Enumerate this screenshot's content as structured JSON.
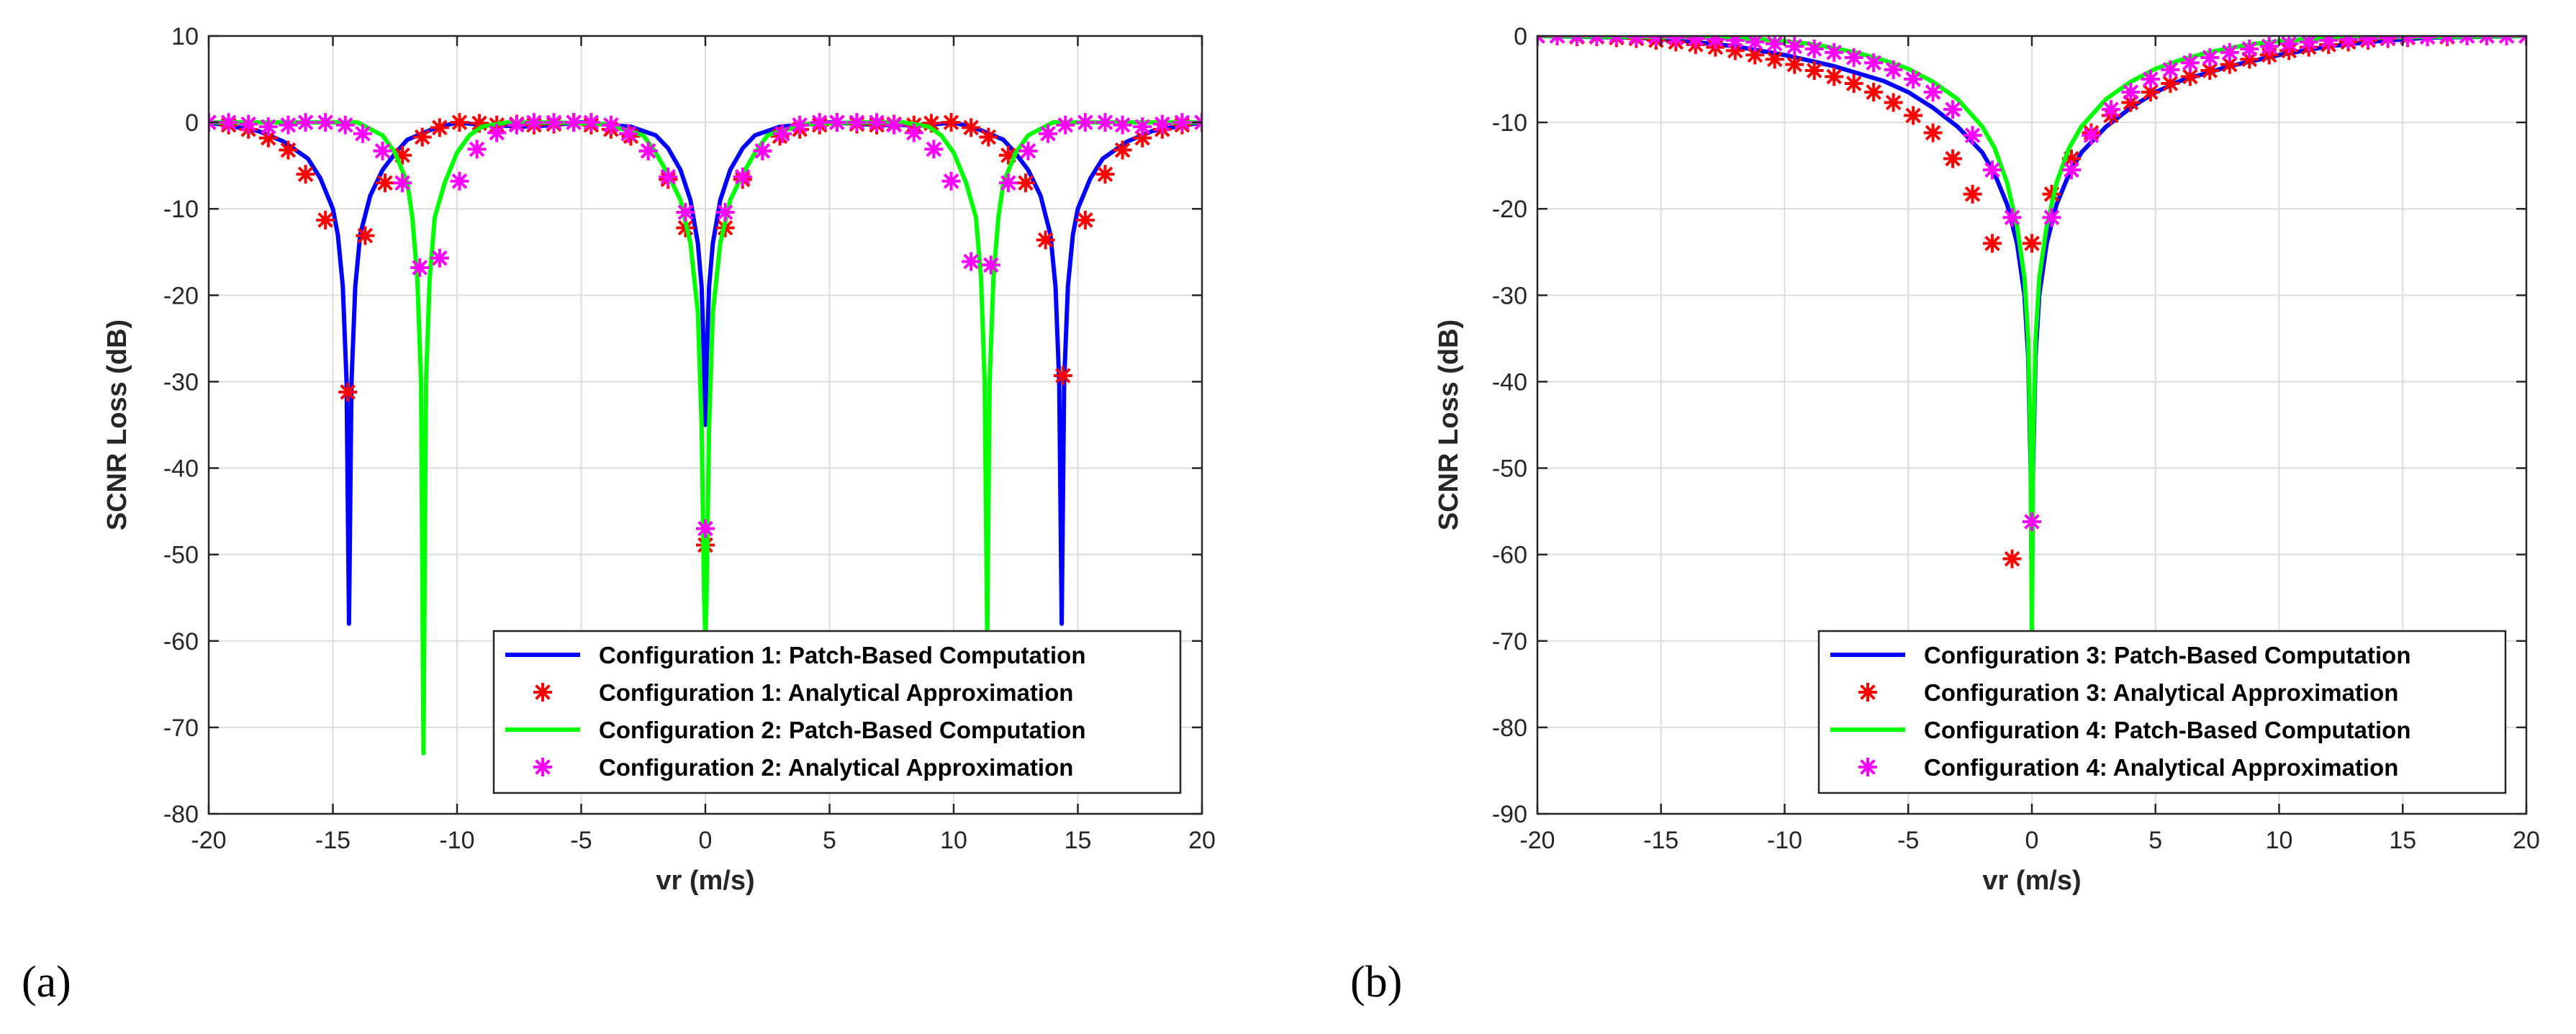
{
  "chart_data": [
    {
      "type": "line",
      "panel_label": "(a)",
      "xlabel": "vr (m/s)",
      "ylabel": "SCNR Loss (dB)",
      "xlim": [
        -20,
        20
      ],
      "ylim": [
        -80,
        10
      ],
      "xticks": [
        -20,
        -15,
        -10,
        -5,
        0,
        5,
        10,
        15,
        20
      ],
      "yticks": [
        10,
        0,
        -10,
        -20,
        -30,
        -40,
        -50,
        -60,
        -70,
        -80
      ],
      "grid": true,
      "legend_position": "bottom-right",
      "series": [
        {
          "name": "Configuration 1: Patch-Based Computation",
          "style": "line",
          "color": "#0000ff",
          "x": [
            -20,
            -18,
            -17,
            -16,
            -15.5,
            -15,
            -14.8,
            -14.6,
            -14.45,
            -14.35,
            -14.25,
            -14.1,
            -13.9,
            -13.5,
            -13,
            -12.5,
            -12,
            -11,
            -10,
            -9,
            -7,
            -5,
            -3,
            -2,
            -1.5,
            -1,
            -0.6,
            -0.3,
            -0.15,
            -0.05,
            0,
            0.05,
            0.15,
            0.3,
            0.6,
            1,
            1.5,
            2,
            3,
            5,
            7,
            9,
            10,
            11,
            12,
            12.5,
            13,
            13.5,
            13.9,
            14.1,
            14.25,
            14.35,
            14.45,
            14.6,
            14.8,
            15,
            15.5,
            16,
            17,
            18,
            20
          ],
          "y": [
            0,
            -1,
            -2.2,
            -4.2,
            -6.5,
            -10,
            -13,
            -19,
            -30,
            -58,
            -30,
            -19,
            -13,
            -8.5,
            -5.5,
            -3.6,
            -2,
            -0.8,
            0,
            -0.3,
            -0.5,
            0,
            -0.5,
            -1.5,
            -3,
            -5.5,
            -9,
            -14,
            -19,
            -28,
            -35,
            -28,
            -19,
            -14,
            -9,
            -5.5,
            -3,
            -1.5,
            -0.5,
            0,
            -0.3,
            -0.3,
            0,
            -0.8,
            -2,
            -3.6,
            -5.5,
            -8.5,
            -13,
            -19,
            -30,
            -58,
            -30,
            -19,
            -13,
            -10,
            -6.5,
            -4.2,
            -2.2,
            -1,
            0
          ]
        },
        {
          "name": "Configuration 1: Analytical Approximation",
          "style": "markers",
          "marker": "*",
          "color": "#ff0000",
          "x": [
            -20,
            -19.2,
            -18.4,
            -17.6,
            -16.8,
            -16.1,
            -15.3,
            -14.4,
            -13.7,
            -12.9,
            -12.2,
            -11.4,
            -10.7,
            -9.9,
            -9.1,
            -8.4,
            -7.6,
            -6.9,
            -6.1,
            -5.3,
            -4.6,
            -3.8,
            -3.0,
            -2.3,
            -1.5,
            -0.8,
            0,
            0.8,
            1.5,
            2.3,
            3.0,
            3.8,
            4.6,
            5.3,
            6.1,
            6.9,
            7.6,
            8.4,
            9.1,
            9.9,
            10.7,
            11.4,
            12.2,
            12.9,
            13.7,
            14.4,
            15.3,
            16.1,
            16.8,
            17.6,
            18.4,
            19.2,
            20
          ],
          "y": [
            0,
            -0.3,
            -0.8,
            -1.8,
            -3.2,
            -6,
            -11.3,
            -31.2,
            -13.1,
            -7,
            -3.8,
            -1.7,
            -0.6,
            0,
            -0.1,
            -0.3,
            -0.2,
            -0.3,
            -0.2,
            0,
            -0.3,
            -0.8,
            -1.6,
            -3.3,
            -6.6,
            -12.2,
            -48.9,
            -12.2,
            -6.6,
            -3.3,
            -1.6,
            -0.8,
            -0.3,
            0,
            -0.2,
            -0.3,
            -0.2,
            -0.3,
            -0.1,
            0,
            -0.6,
            -1.7,
            -3.8,
            -7,
            -13.6,
            -29.3,
            -11.3,
            -6,
            -3.2,
            -1.8,
            -0.8,
            -0.3,
            0
          ]
        },
        {
          "name": "Configuration 2: Patch-Based Computation",
          "style": "line",
          "color": "#00ff00",
          "x": [
            -20,
            -14,
            -13,
            -12.5,
            -12,
            -11.8,
            -11.6,
            -11.45,
            -11.35,
            -11.25,
            -11.1,
            -10.9,
            -10.5,
            -10,
            -9.5,
            -9,
            -8,
            -6,
            -4,
            -2.5,
            -2,
            -1.5,
            -1,
            -0.6,
            -0.3,
            -0.15,
            -0.05,
            0,
            0.05,
            0.15,
            0.3,
            0.6,
            1,
            1.5,
            2,
            2.5,
            4,
            6,
            8,
            9,
            9.5,
            10,
            10.5,
            10.9,
            11.1,
            11.25,
            11.35,
            11.45,
            11.6,
            11.8,
            12,
            12.5,
            13,
            14,
            20
          ],
          "y": [
            0,
            0,
            -1.5,
            -3.5,
            -7,
            -11,
            -18,
            -30,
            -73,
            -30,
            -18,
            -11,
            -7,
            -3.5,
            -1.5,
            -0.5,
            0,
            0,
            -0.2,
            -1.5,
            -3.5,
            -6,
            -9,
            -14,
            -22,
            -35,
            -55,
            -60,
            -55,
            -35,
            -22,
            -14,
            -9,
            -6,
            -3.5,
            -1.5,
            -0.2,
            0,
            0,
            -0.5,
            -1.5,
            -3.5,
            -7,
            -11,
            -18,
            -30,
            -60,
            -30,
            -18,
            -11,
            -7,
            -3.5,
            -1.5,
            0,
            0
          ]
        },
        {
          "name": "Configuration 2: Analytical Approximation",
          "style": "markers",
          "marker": "*",
          "color": "#ff00ff",
          "x": [
            -20,
            -19.2,
            -18.4,
            -17.6,
            -16.8,
            -16.1,
            -15.3,
            -14.5,
            -13.8,
            -13.0,
            -12.2,
            -11.5,
            -10.7,
            -9.9,
            -9.2,
            -8.4,
            -7.6,
            -6.9,
            -6.1,
            -5.3,
            -4.6,
            -3.8,
            -3.1,
            -2.3,
            -1.5,
            -0.8,
            0,
            0.8,
            1.5,
            2.3,
            3.1,
            3.8,
            4.6,
            5.3,
            6.1,
            6.9,
            7.6,
            8.4,
            9.2,
            9.9,
            10.7,
            11.5,
            12.2,
            13.0,
            13.8,
            14.5,
            15.3,
            16.1,
            16.8,
            17.6,
            18.4,
            19.2,
            20
          ],
          "y": [
            0,
            0,
            -0.2,
            -0.5,
            -0.3,
            0,
            0,
            -0.3,
            -1.3,
            -3.3,
            -7,
            -16.8,
            -15.7,
            -6.8,
            -3.1,
            -1.2,
            -0.3,
            0,
            0,
            0,
            0,
            -0.3,
            -1.3,
            -3.3,
            -6.3,
            -10.4,
            -47,
            -10.4,
            -6.3,
            -3.3,
            -1.3,
            -0.3,
            0,
            0,
            0,
            0,
            -0.3,
            -1.2,
            -3.1,
            -6.8,
            -16.1,
            -16.5,
            -7,
            -3.3,
            -1.3,
            -0.3,
            0,
            0,
            -0.3,
            -0.5,
            -0.2,
            0,
            0
          ]
        }
      ]
    },
    {
      "type": "line",
      "panel_label": "(b)",
      "xlabel": "vr (m/s)",
      "ylabel": "SCNR Loss (dB)",
      "xlim": [
        -20,
        20
      ],
      "ylim": [
        -90,
        0
      ],
      "xticks": [
        -20,
        -15,
        -10,
        -5,
        0,
        5,
        10,
        15,
        20
      ],
      "yticks": [
        0,
        -10,
        -20,
        -30,
        -40,
        -50,
        -60,
        -70,
        -80,
        -90
      ],
      "grid": true,
      "legend_position": "bottom-right",
      "series": [
        {
          "name": "Configuration 3: Patch-Based Computation",
          "style": "line",
          "color": "#0000ff",
          "x": [
            -20,
            -18,
            -16,
            -14,
            -12,
            -10,
            -8,
            -6,
            -5,
            -4,
            -3,
            -2,
            -1.5,
            -1,
            -0.6,
            -0.3,
            -0.15,
            -0.05,
            0,
            0.05,
            0.15,
            0.3,
            0.6,
            1,
            1.5,
            2,
            3,
            4,
            5,
            6,
            8,
            10,
            12,
            14,
            16,
            18,
            20
          ],
          "y": [
            0,
            -0.1,
            -0.2,
            -0.6,
            -1.2,
            -2.2,
            -3.5,
            -5.2,
            -6.5,
            -8.3,
            -10.5,
            -13.5,
            -16,
            -19.5,
            -24,
            -30,
            -37,
            -50,
            -65,
            -50,
            -37,
            -30,
            -24,
            -19.5,
            -16,
            -13.5,
            -10.5,
            -8.3,
            -6.5,
            -5.2,
            -3.5,
            -2.2,
            -1.2,
            -0.6,
            -0.2,
            -0.1,
            0
          ]
        },
        {
          "name": "Configuration 3: Analytical Approximation",
          "style": "markers",
          "marker": "*",
          "color": "#ff0000",
          "x": [
            -20,
            -19.2,
            -18.4,
            -17.6,
            -16.8,
            -16,
            -15.2,
            -14.4,
            -13.6,
            -12.8,
            -12,
            -11.2,
            -10.4,
            -9.6,
            -8.8,
            -8,
            -7.2,
            -6.4,
            -5.6,
            -4.8,
            -4,
            -3.2,
            -2.4,
            -1.6,
            -0.8,
            0,
            0.8,
            1.6,
            2.4,
            3.2,
            4,
            4.8,
            5.6,
            6.4,
            7.2,
            8,
            8.8,
            9.6,
            10.4,
            11.2,
            12,
            12.8,
            13.6,
            14.4,
            15.2,
            16,
            16.8,
            17.6,
            18.4,
            19.2,
            20
          ],
          "y": [
            0,
            0,
            -0.1,
            -0.1,
            -0.2,
            -0.3,
            -0.5,
            -0.7,
            -1,
            -1.3,
            -1.7,
            -2.2,
            -2.7,
            -3.3,
            -4,
            -4.7,
            -5.5,
            -6.5,
            -7.7,
            -9.2,
            -11.2,
            -14.2,
            -18.3,
            -24,
            -60.5,
            -24,
            -18.3,
            -14.2,
            -11.2,
            -9.2,
            -7.7,
            -6.5,
            -5.5,
            -4.7,
            -4,
            -3.3,
            -2.7,
            -2.2,
            -1.7,
            -1.3,
            -1,
            -0.7,
            -0.5,
            -0.3,
            -0.2,
            -0.1,
            -0.1,
            0,
            0,
            0,
            0
          ]
        },
        {
          "name": "Configuration 4: Patch-Based Computation",
          "style": "line",
          "color": "#00ff00",
          "x": [
            -20,
            -16,
            -13,
            -11,
            -10,
            -9,
            -8,
            -7,
            -6,
            -5,
            -4,
            -3,
            -2,
            -1.5,
            -1,
            -0.6,
            -0.3,
            -0.15,
            -0.05,
            0,
            0.05,
            0.15,
            0.3,
            0.6,
            1,
            1.5,
            2,
            3,
            4,
            5,
            6,
            7,
            8,
            9,
            10,
            11,
            13,
            16,
            20
          ],
          "y": [
            0,
            -0.1,
            -0.2,
            -0.4,
            -0.6,
            -0.9,
            -1.4,
            -2,
            -2.8,
            -3.8,
            -5.3,
            -7.3,
            -10.5,
            -13,
            -17,
            -22,
            -28,
            -35,
            -48,
            -70,
            -48,
            -35,
            -28,
            -22,
            -17,
            -13,
            -10.5,
            -7.3,
            -5.3,
            -3.8,
            -2.8,
            -2,
            -1.4,
            -0.9,
            -0.6,
            -0.4,
            -0.2,
            -0.1,
            0
          ]
        },
        {
          "name": "Configuration 4: Analytical Approximation",
          "style": "markers",
          "marker": "*",
          "color": "#ff00ff",
          "x": [
            -20,
            -19.2,
            -18.4,
            -17.6,
            -16.8,
            -16,
            -15.2,
            -14.4,
            -13.6,
            -12.8,
            -12,
            -11.2,
            -10.4,
            -9.6,
            -8.8,
            -8,
            -7.2,
            -6.4,
            -5.6,
            -4.8,
            -4,
            -3.2,
            -2.4,
            -1.6,
            -0.8,
            0,
            0.8,
            1.6,
            2.4,
            3.2,
            4,
            4.8,
            5.6,
            6.4,
            7.2,
            8,
            8.8,
            9.6,
            10.4,
            11.2,
            12,
            12.8,
            13.6,
            14.4,
            15.2,
            16,
            16.8,
            17.6,
            18.4,
            19.2,
            20
          ],
          "y": [
            0,
            0,
            0,
            0,
            0,
            -0.1,
            -0.1,
            -0.2,
            -0.3,
            -0.4,
            -0.5,
            -0.7,
            -0.9,
            -1.2,
            -1.5,
            -1.9,
            -2.5,
            -3.1,
            -3.9,
            -5,
            -6.5,
            -8.5,
            -11.5,
            -15.5,
            -21,
            -56.2,
            -21,
            -15.5,
            -11.5,
            -8.5,
            -6.5,
            -5,
            -3.9,
            -3.1,
            -2.5,
            -1.9,
            -1.5,
            -1.2,
            -0.9,
            -0.7,
            -0.5,
            -0.4,
            -0.3,
            -0.2,
            -0.1,
            -0.1,
            0,
            0,
            0,
            0,
            0
          ]
        }
      ]
    }
  ]
}
